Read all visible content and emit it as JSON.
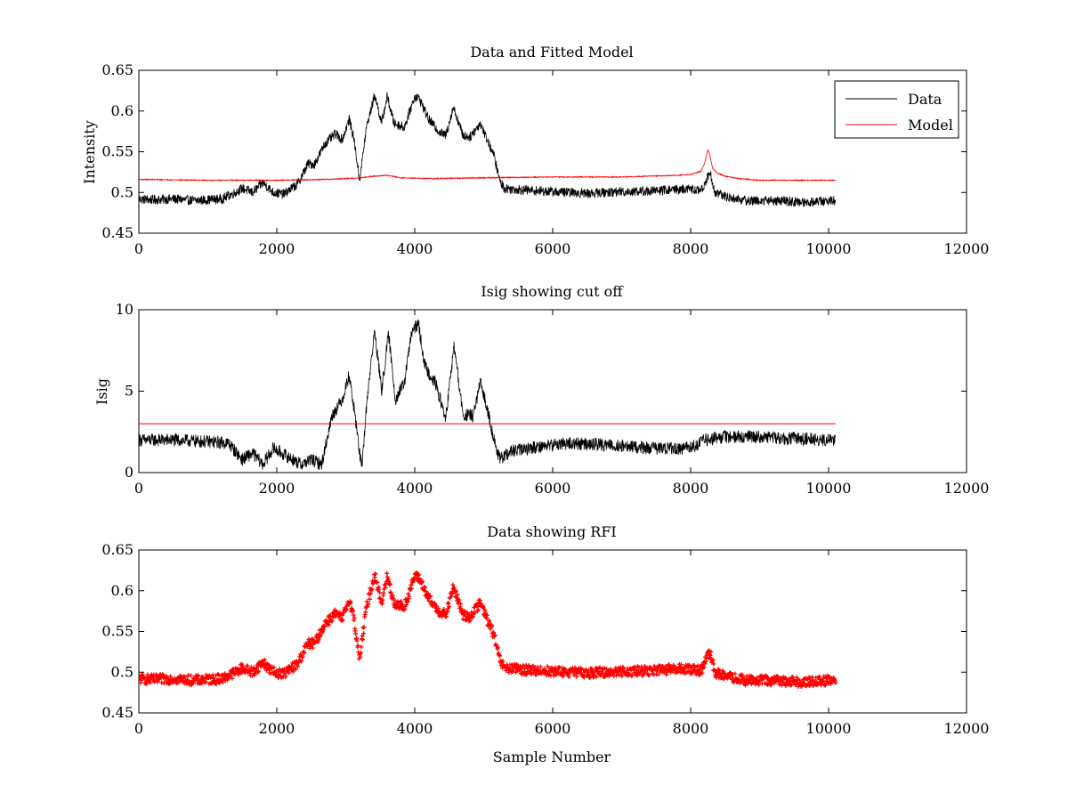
{
  "chart_data": [
    {
      "type": "line",
      "title": "Data and Fitted Model",
      "xlabel": "",
      "ylabel": "Intensity",
      "xlim": [
        0,
        12000
      ],
      "ylim": [
        0.45,
        0.65
      ],
      "xticks": [
        0,
        2000,
        4000,
        6000,
        8000,
        10000,
        12000
      ],
      "yticks": [
        0.45,
        0.5,
        0.55,
        0.6,
        0.65
      ],
      "xtick_labels": [
        "0",
        "2000",
        "4000",
        "6000",
        "8000",
        "10000",
        "12000"
      ],
      "ytick_labels": [
        "0.45",
        "0.5",
        "0.55",
        "0.6",
        "0.65"
      ],
      "legend": {
        "position": "top-right",
        "entries": [
          "Data",
          "Model"
        ]
      },
      "series": [
        {
          "name": "Data",
          "color": "#000000",
          "style": "noisy-line",
          "noise": 0.006,
          "x": [
            0,
            200,
            500,
            800,
            1000,
            1200,
            1400,
            1500,
            1650,
            1800,
            1950,
            2100,
            2300,
            2450,
            2550,
            2700,
            2850,
            2950,
            3050,
            3120,
            3200,
            3300,
            3420,
            3520,
            3600,
            3700,
            3850,
            4000,
            4070,
            4200,
            4350,
            4450,
            4560,
            4700,
            4800,
            4950,
            5050,
            5150,
            5230,
            5300,
            5600,
            6000,
            6500,
            7000,
            7500,
            7800,
            8000,
            8150,
            8200,
            8280,
            8350,
            8500,
            8800,
            9200,
            9600,
            10100
          ],
          "y": [
            0.492,
            0.491,
            0.492,
            0.49,
            0.491,
            0.492,
            0.5,
            0.505,
            0.5,
            0.512,
            0.5,
            0.498,
            0.51,
            0.535,
            0.535,
            0.56,
            0.572,
            0.565,
            0.59,
            0.565,
            0.515,
            0.58,
            0.62,
            0.585,
            0.618,
            0.585,
            0.58,
            0.618,
            0.615,
            0.59,
            0.575,
            0.57,
            0.605,
            0.57,
            0.568,
            0.585,
            0.565,
            0.545,
            0.515,
            0.505,
            0.503,
            0.501,
            0.499,
            0.501,
            0.502,
            0.504,
            0.504,
            0.502,
            0.51,
            0.525,
            0.5,
            0.495,
            0.49,
            0.49,
            0.488,
            0.49
          ]
        },
        {
          "name": "Model",
          "color": "#ff0000",
          "style": "line",
          "noise": 0.0006,
          "x": [
            0,
            1000,
            2000,
            2700,
            3000,
            3200,
            3400,
            3600,
            3800,
            4200,
            5000,
            6000,
            7000,
            7800,
            8000,
            8150,
            8200,
            8250,
            8280,
            8320,
            8380,
            8500,
            8700,
            9000,
            10100
          ],
          "y": [
            0.516,
            0.515,
            0.515,
            0.516,
            0.517,
            0.518,
            0.52,
            0.521,
            0.518,
            0.517,
            0.518,
            0.519,
            0.519,
            0.521,
            0.522,
            0.526,
            0.535,
            0.553,
            0.545,
            0.53,
            0.524,
            0.52,
            0.517,
            0.515,
            0.515
          ]
        }
      ]
    },
    {
      "type": "line",
      "title": "Isig showing cut off",
      "xlabel": "",
      "ylabel": "Isig",
      "xlim": [
        0,
        12000
      ],
      "ylim": [
        0,
        10
      ],
      "xticks": [
        0,
        2000,
        4000,
        6000,
        8000,
        10000,
        12000
      ],
      "yticks": [
        0,
        5,
        10
      ],
      "xtick_labels": [
        "0",
        "2000",
        "4000",
        "6000",
        "8000",
        "10000",
        "12000"
      ],
      "ytick_labels": [
        "0",
        "5",
        "10"
      ],
      "series": [
        {
          "color": "#000000",
          "style": "noisy-line",
          "noise": 0.4,
          "x": [
            0,
            500,
            1000,
            1300,
            1500,
            1650,
            1800,
            1950,
            2150,
            2350,
            2500,
            2650,
            2800,
            2950,
            3050,
            3150,
            3230,
            3320,
            3420,
            3520,
            3620,
            3720,
            3850,
            3950,
            4050,
            4150,
            4300,
            4450,
            4570,
            4700,
            4850,
            4950,
            5050,
            5150,
            5230,
            5400,
            5800,
            6200,
            6800,
            7400,
            7900,
            8100,
            8200,
            8500,
            9000,
            9500,
            10100
          ],
          "y": [
            2.0,
            2.0,
            1.9,
            1.8,
            0.8,
            1.2,
            0.5,
            1.5,
            1.0,
            0.5,
            0.8,
            0.5,
            3.5,
            4.5,
            6.0,
            3.0,
            0.2,
            5.0,
            8.7,
            5.0,
            8.5,
            4.5,
            5.5,
            8.5,
            9.2,
            6.5,
            5.5,
            3.3,
            7.8,
            3.5,
            3.5,
            5.5,
            4.0,
            2.0,
            0.8,
            1.3,
            1.6,
            1.8,
            1.7,
            1.5,
            1.5,
            1.7,
            2.0,
            2.2,
            2.2,
            2.1,
            2.0
          ]
        },
        {
          "color": "#ff0000",
          "style": "line",
          "noise": 0,
          "x": [
            0,
            10100
          ],
          "y": [
            3,
            3
          ]
        }
      ]
    },
    {
      "type": "scatter",
      "title": "Data showing RFI",
      "xlabel": "Sample Number",
      "ylabel": "",
      "xlim": [
        0,
        12000
      ],
      "ylim": [
        0.45,
        0.65
      ],
      "xticks": [
        0,
        2000,
        4000,
        6000,
        8000,
        10000,
        12000
      ],
      "yticks": [
        0.45,
        0.5,
        0.55,
        0.6,
        0.65
      ],
      "xtick_labels": [
        "0",
        "2000",
        "4000",
        "6000",
        "8000",
        "10000",
        "12000"
      ],
      "ytick_labels": [
        "0.45",
        "0.5",
        "0.55",
        "0.6",
        "0.65"
      ],
      "series": [
        {
          "color": "#ff0000",
          "style": "markers",
          "noise": 0.006,
          "x": [
            0,
            200,
            500,
            800,
            1000,
            1200,
            1400,
            1500,
            1650,
            1800,
            1950,
            2100,
            2300,
            2450,
            2550,
            2700,
            2850,
            2950,
            3050,
            3120,
            3200,
            3300,
            3420,
            3520,
            3600,
            3700,
            3850,
            4000,
            4070,
            4200,
            4350,
            4450,
            4560,
            4700,
            4800,
            4950,
            5050,
            5150,
            5230,
            5300,
            5600,
            6000,
            6500,
            7000,
            7500,
            7800,
            8000,
            8150,
            8200,
            8280,
            8350,
            8500,
            8800,
            9200,
            9600,
            10100
          ],
          "y": [
            0.492,
            0.491,
            0.492,
            0.49,
            0.491,
            0.492,
            0.5,
            0.505,
            0.5,
            0.512,
            0.5,
            0.498,
            0.51,
            0.535,
            0.535,
            0.56,
            0.572,
            0.565,
            0.59,
            0.565,
            0.515,
            0.58,
            0.62,
            0.585,
            0.618,
            0.585,
            0.58,
            0.618,
            0.615,
            0.59,
            0.575,
            0.57,
            0.605,
            0.57,
            0.568,
            0.585,
            0.565,
            0.545,
            0.515,
            0.505,
            0.503,
            0.501,
            0.499,
            0.501,
            0.502,
            0.504,
            0.504,
            0.502,
            0.51,
            0.525,
            0.5,
            0.495,
            0.49,
            0.49,
            0.488,
            0.49
          ]
        }
      ]
    }
  ]
}
